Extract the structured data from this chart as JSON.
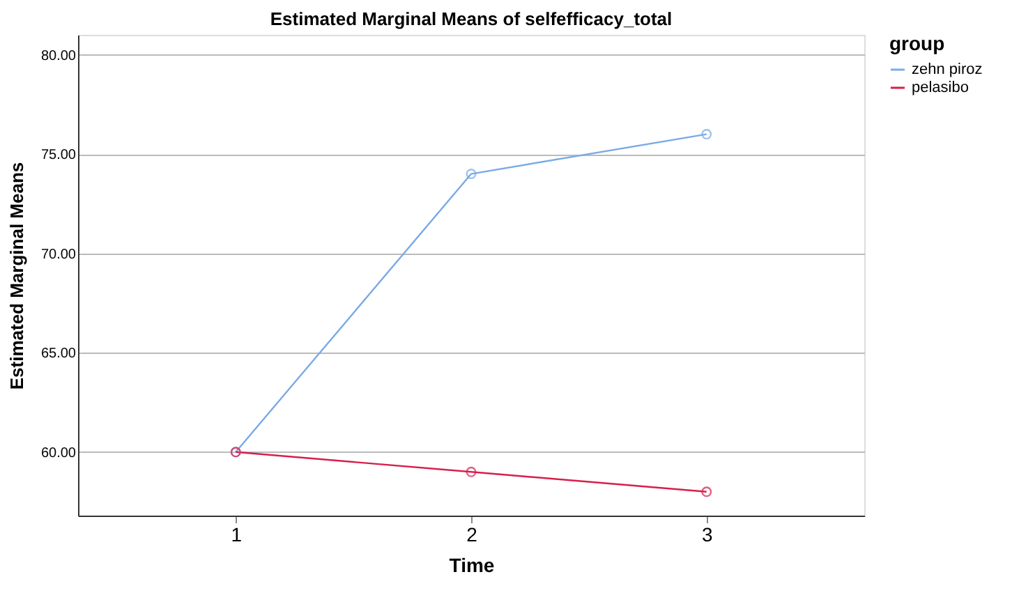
{
  "chart_data": {
    "type": "line",
    "title": "Estimated Marginal Means of selfefficacy_total",
    "xlabel": "Time",
    "ylabel": "Estimated Marginal Means",
    "legend_title": "group",
    "categories": [
      "1",
      "2",
      "3"
    ],
    "series": [
      {
        "name": "zehn piroz",
        "color": "#7aaae6",
        "values": [
          60,
          74,
          76
        ]
      },
      {
        "name": "pelasibo",
        "color": "#d81e4a",
        "values": [
          60,
          59,
          58
        ]
      }
    ],
    "ylim": [
      56.8,
      81
    ],
    "yticks": [
      {
        "value": 60,
        "label": "60.00"
      },
      {
        "value": 65,
        "label": "65.00"
      },
      {
        "value": 70,
        "label": "70.00"
      },
      {
        "value": 75,
        "label": "75.00"
      },
      {
        "value": 80,
        "label": "80.00"
      }
    ],
    "grid": "y",
    "legend": "top right",
    "marker": "circle",
    "line_style": "solid"
  }
}
